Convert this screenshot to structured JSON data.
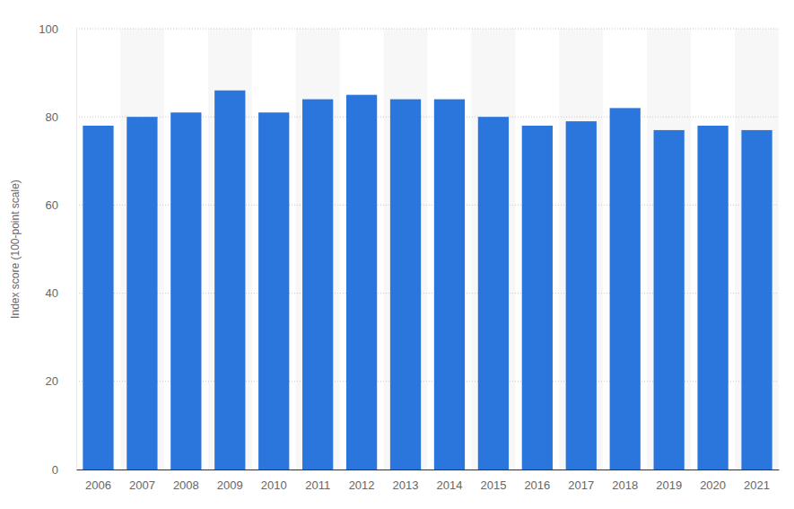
{
  "chart_data": {
    "type": "bar",
    "y_label": "Index score (100-point scale)",
    "categories": [
      "2006",
      "2007",
      "2008",
      "2009",
      "2010",
      "2011",
      "2012",
      "2013",
      "2014",
      "2015",
      "2016",
      "2017",
      "2018",
      "2019",
      "2020",
      "2021"
    ],
    "values": [
      78,
      80,
      81,
      86,
      81,
      84,
      85,
      84,
      84,
      80,
      78,
      79,
      82,
      77,
      78,
      77
    ],
    "color": "#2a76dd",
    "ylim": [
      0,
      100
    ],
    "yticks": [
      0,
      20,
      40,
      60,
      80,
      100
    ],
    "grid": true
  }
}
